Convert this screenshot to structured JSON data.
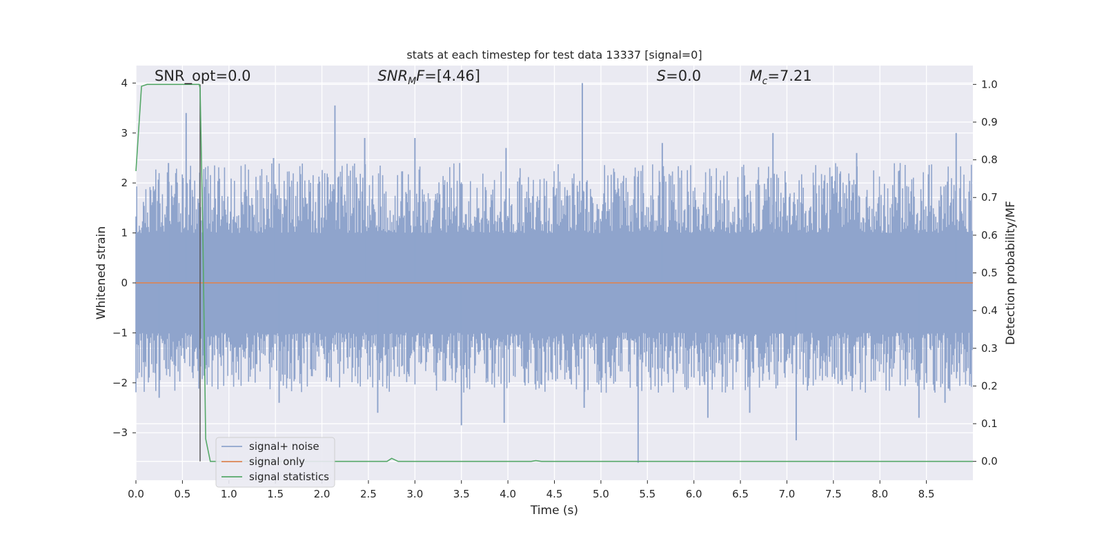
{
  "chart_data": {
    "type": "line",
    "title": "stats at each timestep for test data 13337 [signal=0]",
    "xlabel": "Time (s)",
    "ylabel_left": "Whitened strain",
    "ylabel_right": "Detection probability/MF",
    "xlim": [
      0.0,
      9.0
    ],
    "ylim_left": [
      -3.95,
      4.35
    ],
    "ylim_right": [
      -0.05,
      1.05
    ],
    "x_ticks": [
      "0.0",
      "0.5",
      "1.0",
      "1.5",
      "2.0",
      "2.5",
      "3.0",
      "3.5",
      "4.0",
      "4.5",
      "5.0",
      "5.5",
      "6.0",
      "6.5",
      "7.0",
      "7.5",
      "8.0",
      "8.5"
    ],
    "x_tick_values": [
      0.0,
      0.5,
      1.0,
      1.5,
      2.0,
      2.5,
      3.0,
      3.5,
      4.0,
      4.5,
      5.0,
      5.5,
      6.0,
      6.5,
      7.0,
      7.5,
      8.0,
      8.5
    ],
    "y_ticks_left": [
      "−3",
      "−2",
      "−1",
      "0",
      "1",
      "2",
      "3",
      "4"
    ],
    "y_tick_values_left": [
      -3,
      -2,
      -1,
      0,
      1,
      2,
      3,
      4
    ],
    "y_ticks_right": [
      "0.0",
      "0.1",
      "0.2",
      "0.3",
      "0.4",
      "0.5",
      "0.6",
      "0.7",
      "0.8",
      "0.9",
      "1.0"
    ],
    "y_tick_values_right": [
      0.0,
      0.1,
      0.2,
      0.3,
      0.4,
      0.5,
      0.6,
      0.7,
      0.8,
      0.9,
      1.0
    ],
    "grid": true,
    "legend_placement": "lower-left",
    "annotations": [
      {
        "text": "SNR_opt=0.0",
        "x": 0.2,
        "y_right": 1.01
      },
      {
        "text": "SNR_MF=[4.46]",
        "x": 2.6,
        "y_right": 1.01,
        "base": "SNR",
        "sub": "M",
        "rest": "F=[4.46]"
      },
      {
        "text": "S=0.0",
        "x": 5.6,
        "y_right": 1.01,
        "base": "S",
        "rest": "=0.0"
      },
      {
        "text": "M_c=7.21",
        "x": 6.6,
        "y_right": 1.01,
        "base": "M",
        "sub": "c",
        "rest": "=7.21"
      }
    ],
    "marker_line": {
      "x": 0.69,
      "y_right_from": 0.0,
      "y_right_to": 1.0
    },
    "series": [
      {
        "name": "signal+ noise",
        "axis": "left",
        "color": "#8fa4cc",
        "style": "dense-noise",
        "noise_band": {
          "inner_min": -1.0,
          "inner_max": 1.0,
          "outer_min": -2.2,
          "outer_max": 2.4
        },
        "peaks": [
          {
            "x": 0.54,
            "y": 3.4
          },
          {
            "x": 2.14,
            "y": 3.55
          },
          {
            "x": 3.0,
            "y": 2.9
          },
          {
            "x": 3.98,
            "y": 2.7
          },
          {
            "x": 4.8,
            "y": 4.0
          },
          {
            "x": 6.85,
            "y": 3.0
          },
          {
            "x": 8.82,
            "y": 3.0
          },
          {
            "x": 1.48,
            "y": 2.5
          },
          {
            "x": 2.46,
            "y": 2.9
          },
          {
            "x": 5.66,
            "y": 2.8
          },
          {
            "x": 7.75,
            "y": 2.6
          },
          {
            "x": 0.35,
            "y": 2.4
          }
        ],
        "troughs": [
          {
            "x": 3.5,
            "y": -2.85
          },
          {
            "x": 3.96,
            "y": -2.8
          },
          {
            "x": 4.82,
            "y": -2.5
          },
          {
            "x": 5.4,
            "y": -3.6
          },
          {
            "x": 6.15,
            "y": -2.7
          },
          {
            "x": 7.1,
            "y": -3.15
          },
          {
            "x": 8.42,
            "y": -2.7
          },
          {
            "x": 2.6,
            "y": -2.6
          },
          {
            "x": 1.54,
            "y": -2.4
          },
          {
            "x": 0.25,
            "y": -2.3
          },
          {
            "x": 6.6,
            "y": -2.6
          },
          {
            "x": 8.7,
            "y": -2.4
          }
        ]
      },
      {
        "name": "signal only",
        "axis": "left",
        "color": "#dd8452",
        "points": [
          [
            0.0,
            0.0
          ],
          [
            9.0,
            0.0
          ]
        ]
      },
      {
        "name": "signal statistics",
        "axis": "right",
        "color": "#55a868",
        "points": [
          [
            0.0,
            0.77
          ],
          [
            0.06,
            0.995
          ],
          [
            0.12,
            1.0
          ],
          [
            0.5,
            1.0
          ],
          [
            0.68,
            1.0
          ],
          [
            0.69,
            0.99
          ],
          [
            0.72,
            0.6
          ],
          [
            0.75,
            0.06
          ],
          [
            0.8,
            0.0
          ],
          [
            2.6,
            0.0
          ],
          [
            2.7,
            0.0
          ],
          [
            2.75,
            0.008
          ],
          [
            2.82,
            0.0
          ],
          [
            4.25,
            0.0
          ],
          [
            4.3,
            0.002
          ],
          [
            4.36,
            0.0
          ],
          [
            9.0,
            0.0
          ]
        ]
      }
    ]
  }
}
